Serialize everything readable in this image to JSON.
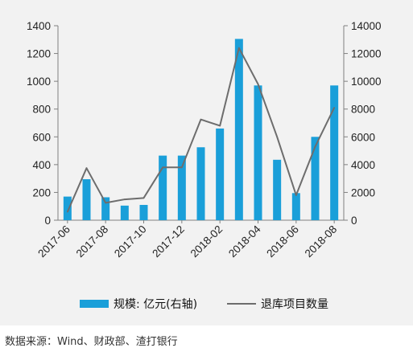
{
  "chart_data": {
    "type": "bar",
    "categories": [
      "2017-06",
      "2017-07",
      "2017-08",
      "2017-09",
      "2017-10",
      "2017-11",
      "2017-12",
      "2018-01",
      "2018-02",
      "2018-03",
      "2018-04",
      "2018-05",
      "2018-06",
      "2018-07",
      "2018-08"
    ],
    "x_tick_labels": [
      "2017-06",
      "2017-08",
      "2017-10",
      "2017-12",
      "2018-02",
      "2018-04",
      "2018-06",
      "2018-08"
    ],
    "series": [
      {
        "name": "规模: 亿元(右轴)",
        "type": "bar",
        "axis": "left",
        "values": [
          170,
          295,
          165,
          105,
          110,
          465,
          465,
          525,
          660,
          1305,
          970,
          435,
          195,
          600,
          970
        ]
      },
      {
        "name": "退库项目数量",
        "type": "line",
        "axis": "right",
        "values": [
          600,
          3750,
          1250,
          1500,
          1600,
          3800,
          3800,
          7250,
          6800,
          12400,
          9800,
          6000,
          1800,
          5300,
          8100
        ]
      }
    ],
    "y_left": {
      "min": 0,
      "max": 1400,
      "ticks": [
        0,
        200,
        400,
        600,
        800,
        1000,
        1200,
        1400
      ]
    },
    "y_right": {
      "min": 0,
      "max": 14000,
      "ticks": [
        0,
        2000,
        4000,
        6000,
        8000,
        10000,
        12000,
        14000
      ]
    },
    "colors": {
      "bar": "#1a9fd9",
      "line": "#6d6d6d",
      "axis": "#808080",
      "panel": "#f2f2f2"
    },
    "legend_position": "bottom",
    "grid": false
  },
  "source_note": "数据来源：Wind、财政部、渣打银行"
}
